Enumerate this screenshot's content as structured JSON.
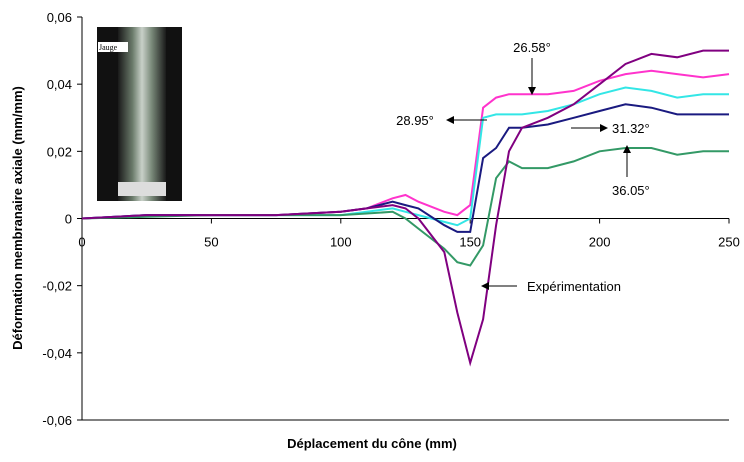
{
  "chart_data": {
    "type": "line",
    "x_label": "Déplacement du cône (mm)",
    "y_label": "Déformation membranaire axiale (mm/mm)",
    "inset_label": "Jauge",
    "x": [
      0,
      25,
      50,
      75,
      100,
      110,
      120,
      125,
      130,
      140,
      145,
      150,
      155,
      160,
      165,
      170,
      180,
      190,
      200,
      210,
      220,
      230,
      240,
      250
    ],
    "series": [
      {
        "name": "26.58°",
        "color": "#ff33cc",
        "values": [
          0,
          0.001,
          0.001,
          0.001,
          0.002,
          0.003,
          0.006,
          0.007,
          0.005,
          0.002,
          0.001,
          0.004,
          0.033,
          0.036,
          0.037,
          0.037,
          0.037,
          0.038,
          0.041,
          0.043,
          0.044,
          0.043,
          0.042,
          0.043
        ]
      },
      {
        "name": "28.95°",
        "color": "#33e6e6",
        "values": [
          0,
          0.001,
          0.001,
          0.001,
          0.001,
          0.002,
          0.003,
          0.002,
          0.001,
          -0.001,
          -0.002,
          0.0,
          0.03,
          0.031,
          0.031,
          0.031,
          0.032,
          0.034,
          0.037,
          0.039,
          0.038,
          0.036,
          0.037,
          0.037
        ]
      },
      {
        "name": "31.32°",
        "color": "#1a1a80",
        "values": [
          0,
          0.001,
          0.001,
          0.001,
          0.002,
          0.003,
          0.005,
          0.004,
          0.003,
          -0.002,
          -0.004,
          -0.004,
          0.018,
          0.021,
          0.027,
          0.027,
          0.028,
          0.03,
          0.032,
          0.034,
          0.033,
          0.031,
          0.031,
          0.031
        ]
      },
      {
        "name": "36.05°",
        "color": "#339966",
        "values": [
          0,
          0.0005,
          0.001,
          0.001,
          0.001,
          0.0015,
          0.002,
          0.0,
          -0.003,
          -0.009,
          -0.013,
          -0.014,
          -0.008,
          0.012,
          0.017,
          0.015,
          0.015,
          0.017,
          0.02,
          0.021,
          0.021,
          0.019,
          0.02,
          0.02
        ]
      },
      {
        "name": "Expérimentation",
        "color": "#800080",
        "values": [
          0,
          0.001,
          0.001,
          0.001,
          0.002,
          0.003,
          0.004,
          0.003,
          0.0,
          -0.01,
          -0.028,
          -0.043,
          -0.03,
          -0.002,
          0.02,
          0.027,
          0.03,
          0.034,
          0.04,
          0.046,
          0.049,
          0.048,
          0.05,
          0.05
        ]
      }
    ],
    "xlim": [
      0,
      250
    ],
    "xticks": [
      0,
      50,
      100,
      150,
      200,
      250
    ],
    "ylim": [
      -0.06,
      0.06
    ],
    "yticks": [
      {
        "value": -0.06,
        "label": "-0,06"
      },
      {
        "value": -0.04,
        "label": "-0,04"
      },
      {
        "value": -0.02,
        "label": "-0,02"
      },
      0,
      {
        "value": 0.02,
        "label": "0,02"
      },
      {
        "value": 0.04,
        "label": "0,04"
      },
      {
        "value": 0.06,
        "label": "0,06"
      }
    ],
    "grid": false
  }
}
